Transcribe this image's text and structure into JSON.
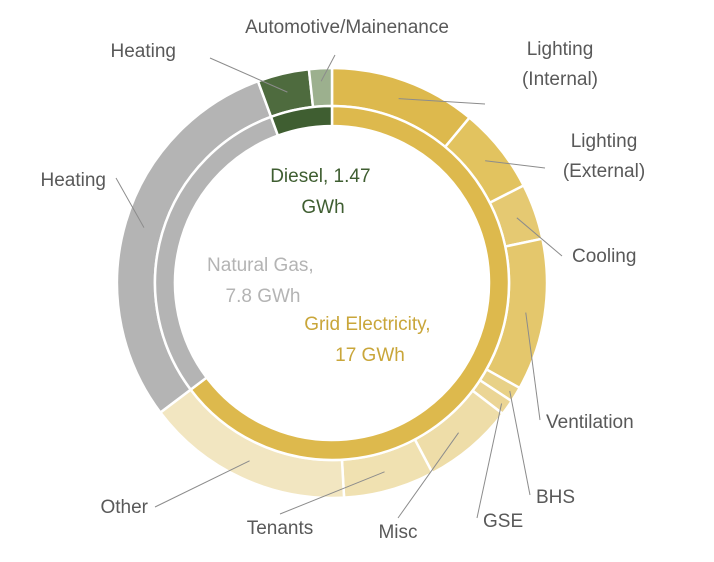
{
  "chart_data": {
    "type": "pie",
    "subtype": "sunburst",
    "title": "",
    "inner_ring": [
      {
        "name": "Grid Electricity",
        "value": 17,
        "label_line1": "Grid Electricity,",
        "label_line2": "17 GWh",
        "color": "#DDB94D"
      },
      {
        "name": "Natural Gas",
        "value": 7.8,
        "label_line1": "Natural Gas,",
        "label_line2": "7.8 GWh",
        "color": "#B4B4B4"
      },
      {
        "name": "Diesel",
        "value": 1.47,
        "label_line1": "Diesel, 1.47",
        "label_line2": "GWh",
        "color": "#3F5E31"
      }
    ],
    "outer_ring": [
      {
        "label": "Lighting",
        "label2": "(Internal)",
        "parent": "Grid Electricity",
        "value": 2.9,
        "color": "#DDB94D"
      },
      {
        "label": "Lighting",
        "label2": "(External)",
        "parent": "Grid Electricity",
        "value": 1.7,
        "color": "#E2C35F"
      },
      {
        "label": "Cooling",
        "parent": "Grid Electricity",
        "value": 1.1,
        "color": "#E5C972"
      },
      {
        "label": "Ventilation",
        "parent": "Grid Electricity",
        "value": 3.0,
        "color": "#E4C76C"
      },
      {
        "label": "BHS",
        "parent": "Grid Electricity",
        "value": 0.3,
        "color": "#E8D187"
      },
      {
        "label": "GSE",
        "parent": "Grid Electricity",
        "value": 0.3,
        "color": "#EBD595"
      },
      {
        "label": "Misc",
        "parent": "Grid Electricity",
        "value": 1.8,
        "color": "#EEDDA8"
      },
      {
        "label": "Tenants",
        "parent": "Grid Electricity",
        "value": 1.8,
        "color": "#F0E1B1"
      },
      {
        "label": "Other",
        "parent": "Grid Electricity",
        "value": 4.1,
        "color": "#F2E6C1"
      },
      {
        "label": "Heating",
        "parent": "Natural Gas",
        "value": 7.8,
        "color": "#B4B4B4"
      },
      {
        "label": "Heating",
        "parent": "Diesel",
        "value": 1.02,
        "color": "#4E6B3E"
      },
      {
        "label": "Automotive/Mainenance",
        "parent": "Diesel",
        "value": 0.45,
        "color": "#9CB08E"
      }
    ]
  }
}
